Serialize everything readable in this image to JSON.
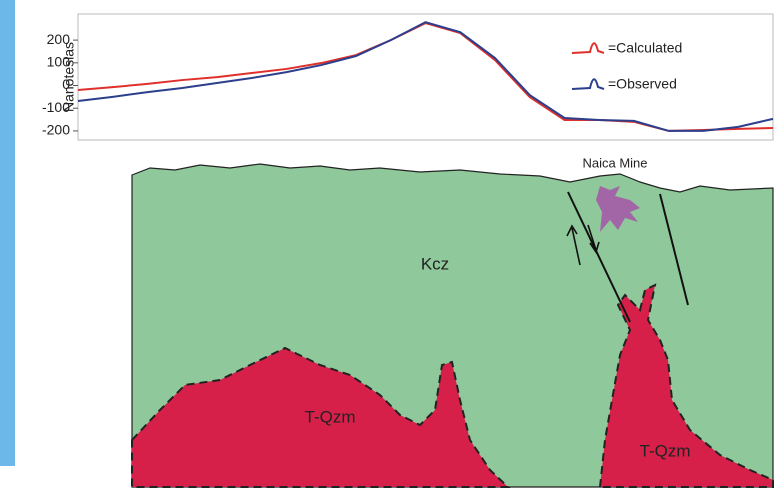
{
  "chart_data": {
    "type": "line",
    "y_label": "Nanoteslas",
    "x": [
      0,
      5,
      10,
      15,
      20,
      25,
      30,
      35,
      40,
      45,
      50,
      55,
      60,
      65,
      70,
      75,
      80,
      85,
      90,
      95,
      100
    ],
    "xlim": [
      0,
      100
    ],
    "ylim": [
      -240,
      315
    ],
    "yticks": [
      -200,
      -100,
      0,
      100,
      200
    ],
    "series": [
      {
        "name": "=Calculated",
        "color": "#e0302c",
        "values": [
          -20,
          -7,
          7,
          24,
          37,
          55,
          73,
          99,
          134,
          200,
          275,
          231,
          112,
          -51,
          -152,
          -152,
          -160,
          -200,
          -196,
          -191,
          -187
        ]
      },
      {
        "name": "=Observed",
        "color": "#2b3f8c",
        "values": [
          -68,
          -50,
          -29,
          -11,
          11,
          33,
          59,
          90,
          130,
          200,
          279,
          235,
          121,
          -42,
          -143,
          -152,
          -156,
          -200,
          -200,
          -182,
          -147
        ]
      }
    ],
    "annotations": [
      "Naica Mine",
      "Kcz",
      "T-Qzm",
      "T-Qzm"
    ]
  }
}
